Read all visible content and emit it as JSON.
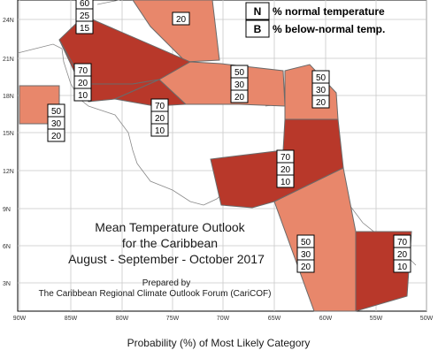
{
  "title": {
    "line1": "Mean Temperature Outlook",
    "line2": "for the Caribbean",
    "line3": "August - September - October 2017"
  },
  "prepared": {
    "line1": "Prepared by",
    "line2": "The Caribbean Regional Climate Outlook Forum (CariCOF)"
  },
  "legend": [
    {
      "key": "N",
      "text": "% normal temperature"
    },
    {
      "key": "B",
      "text": "% below-normal temp."
    }
  ],
  "footer": "Probability (%) of Most Likely Category",
  "axes": {
    "lon_labels": [
      "90W",
      "85W",
      "80W",
      "75W",
      "70W",
      "65W",
      "60W",
      "55W",
      "50W"
    ],
    "lat_labels": [
      "24N",
      "21N",
      "18N",
      "15N",
      "12N",
      "9N",
      "6N",
      "3N"
    ]
  },
  "colors": {
    "dark": "#b8382a",
    "light": "#e8876b",
    "land": "#ffffff",
    "water": "#ffffff"
  },
  "regions": [
    {
      "id": "top-partial",
      "probs": [
        "",
        "",
        "20"
      ]
    },
    {
      "id": "bahamas-cuba",
      "probs": [
        "60",
        "25",
        "15"
      ]
    },
    {
      "id": "jamaica-caymans",
      "probs": [
        "70",
        "20",
        "10"
      ]
    },
    {
      "id": "yucatan",
      "probs": [
        "50",
        "30",
        "20"
      ]
    },
    {
      "id": "central-caribbean",
      "probs": [
        "70",
        "20",
        "10"
      ]
    },
    {
      "id": "hispaniola-pr",
      "probs": [
        "50",
        "30",
        "20"
      ]
    },
    {
      "id": "leeward-islands",
      "probs": [
        "50",
        "30",
        "20"
      ]
    },
    {
      "id": "windward-islands",
      "probs": [
        "70",
        "20",
        "10"
      ]
    },
    {
      "id": "guyana",
      "probs": [
        "50",
        "30",
        "20"
      ]
    },
    {
      "id": "suriname-fg",
      "probs": [
        "70",
        "20",
        "10"
      ]
    }
  ]
}
